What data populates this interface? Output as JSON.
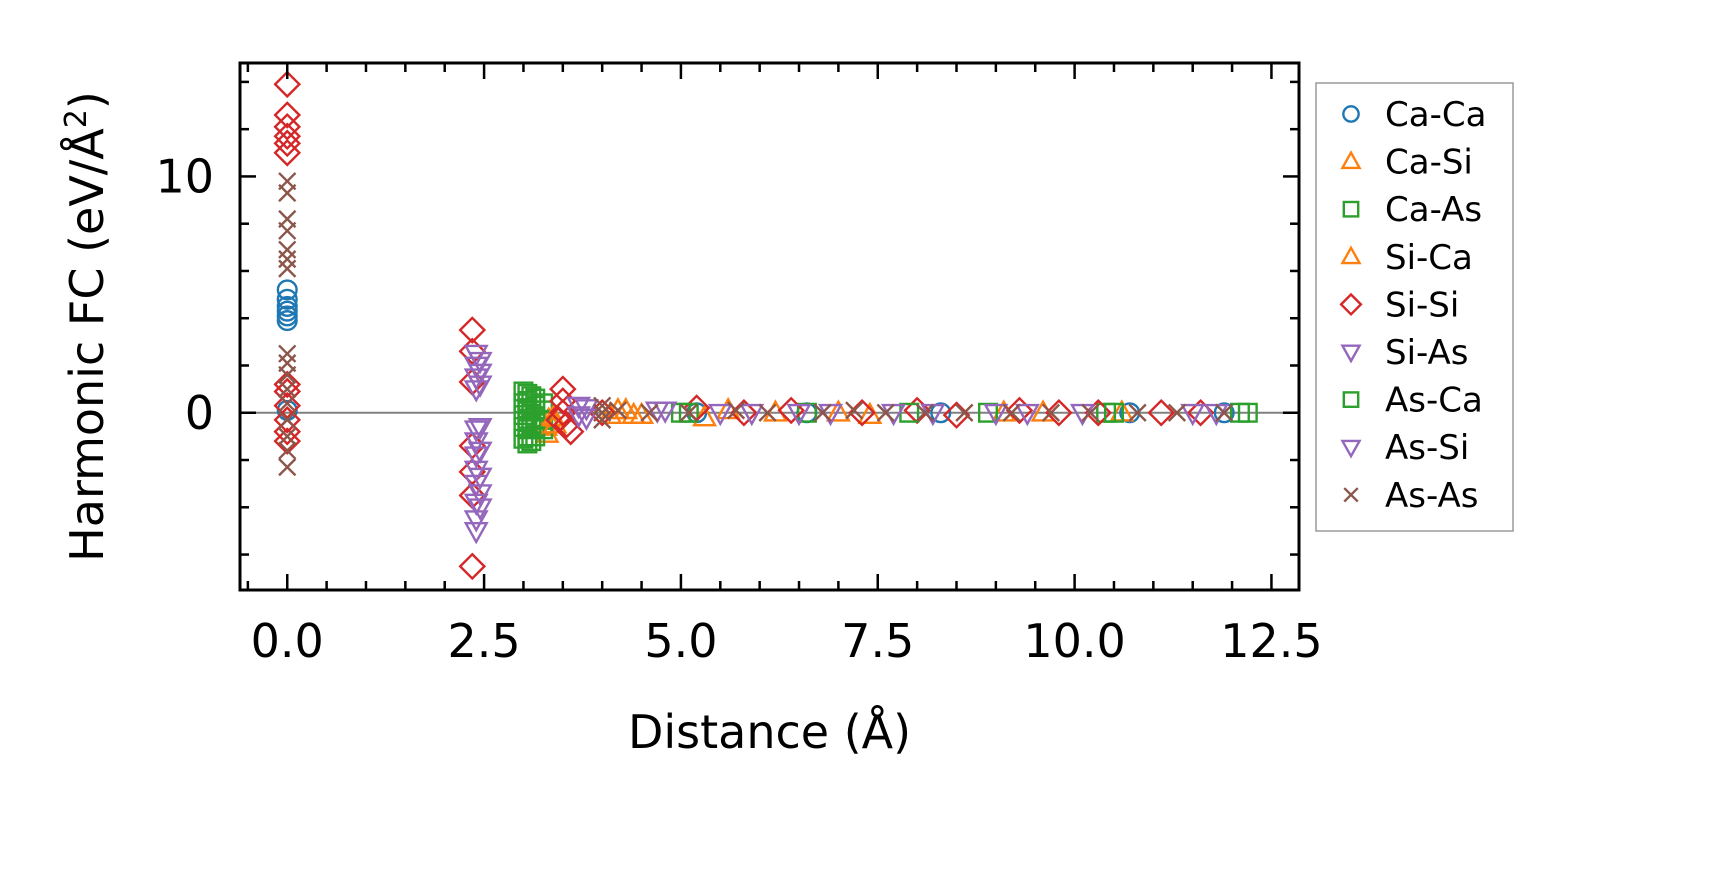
{
  "chart_data": {
    "type": "scatter",
    "title": "",
    "xlabel": "Distance (Å)",
    "ylabel_main": "Harmonic FC (eV/Å",
    "ylabel_sup": "2",
    "ylabel_close": ")",
    "xlim": [
      -0.6,
      12.85
    ],
    "ylim": [
      -7.5,
      14.8
    ],
    "xticks": [
      0.0,
      2.5,
      5.0,
      7.5,
      10.0,
      12.5
    ],
    "xtick_labels": [
      "0.0",
      "2.5",
      "5.0",
      "7.5",
      "10.0",
      "12.5"
    ],
    "yticks": [
      0,
      10
    ],
    "ytick_labels": [
      "0",
      "10"
    ],
    "zero_line": true,
    "grid": false,
    "legend_position": "right, outside",
    "series": [
      {
        "name": "Ca-Ca",
        "marker": "circle",
        "color": "#1f77b4",
        "points": [
          [
            0,
            5.2
          ],
          [
            0,
            4.8
          ],
          [
            0,
            4.5
          ],
          [
            0,
            4.3
          ],
          [
            0,
            4.1
          ],
          [
            0,
            3.9
          ],
          [
            0,
            0.1
          ],
          [
            5.2,
            0.0
          ],
          [
            6.6,
            0.0
          ],
          [
            8.3,
            0.0
          ],
          [
            10.7,
            0.0
          ],
          [
            11.9,
            0.0
          ]
        ]
      },
      {
        "name": "Ca-Si",
        "marker": "triangle-up",
        "color": "#ff7f0e",
        "points": [
          [
            3.3,
            -0.9
          ],
          [
            3.28,
            -0.6
          ],
          [
            3.32,
            -0.3
          ],
          [
            4.1,
            -0.1
          ],
          [
            4.3,
            0.1
          ],
          [
            4.5,
            -0.1
          ],
          [
            5.3,
            -0.2
          ],
          [
            6.2,
            0.0
          ],
          [
            7.4,
            -0.1
          ],
          [
            9.1,
            0.0
          ],
          [
            10.6,
            0.0
          ]
        ]
      },
      {
        "name": "Ca-As",
        "marker": "square",
        "color": "#2ca02c",
        "points": [
          [
            3.05,
            0.8
          ],
          [
            3.05,
            0.5
          ],
          [
            3.05,
            0.2
          ],
          [
            3.05,
            -0.1
          ],
          [
            3.05,
            -0.4
          ],
          [
            3.05,
            -0.7
          ],
          [
            3.05,
            -1.0
          ],
          [
            3.05,
            -1.3
          ],
          [
            3.15,
            0.6
          ],
          [
            3.15,
            0.3
          ],
          [
            3.15,
            -0.2
          ],
          [
            3.15,
            -0.6
          ],
          [
            3.15,
            -1.0
          ],
          [
            3.25,
            0.4
          ],
          [
            3.25,
            0.1
          ],
          [
            3.25,
            -0.3
          ],
          [
            3.25,
            -0.7
          ],
          [
            5.1,
            0.0
          ],
          [
            6.6,
            0.0
          ],
          [
            8.9,
            0.0
          ],
          [
            10.4,
            0.0
          ],
          [
            12.1,
            0.0
          ],
          [
            12.2,
            0.0
          ]
        ]
      },
      {
        "name": "Si-Ca",
        "marker": "triangle-up",
        "color": "#ff7f0e",
        "points": [
          [
            3.4,
            -0.5
          ],
          [
            3.38,
            -0.2
          ],
          [
            4.2,
            0.1
          ],
          [
            4.4,
            -0.1
          ],
          [
            5.6,
            0.1
          ],
          [
            7.0,
            0.0
          ],
          [
            9.6,
            0.0
          ]
        ]
      },
      {
        "name": "Si-Si",
        "marker": "diamond",
        "color": "#d62728",
        "points": [
          [
            0,
            13.9
          ],
          [
            0,
            12.6
          ],
          [
            0,
            12.1
          ],
          [
            0,
            11.7
          ],
          [
            0,
            11.4
          ],
          [
            0,
            11.0
          ],
          [
            0,
            1.2
          ],
          [
            0,
            0.9
          ],
          [
            0,
            0.3
          ],
          [
            0,
            -0.3
          ],
          [
            0,
            -0.8
          ],
          [
            0,
            -1.2
          ],
          [
            2.35,
            3.5
          ],
          [
            2.35,
            2.6
          ],
          [
            2.35,
            1.3
          ],
          [
            2.35,
            -1.4
          ],
          [
            2.35,
            -2.5
          ],
          [
            2.35,
            -3.5
          ],
          [
            2.35,
            -6.5
          ],
          [
            3.5,
            1.0
          ],
          [
            3.5,
            0.5
          ],
          [
            3.5,
            0.0
          ],
          [
            3.55,
            -0.5
          ],
          [
            3.6,
            -0.8
          ],
          [
            3.45,
            -0.3
          ],
          [
            4.0,
            0.0
          ],
          [
            5.2,
            0.2
          ],
          [
            5.8,
            0.0
          ],
          [
            6.4,
            0.1
          ],
          [
            7.3,
            0.0
          ],
          [
            8.0,
            0.1
          ],
          [
            8.5,
            -0.1
          ],
          [
            9.3,
            0.1
          ],
          [
            9.8,
            0.0
          ],
          [
            10.3,
            0.0
          ],
          [
            11.1,
            0.0
          ],
          [
            11.6,
            0.0
          ]
        ]
      },
      {
        "name": "Si-As",
        "marker": "triangle-down",
        "color": "#9467bd",
        "points": [
          [
            2.4,
            2.5
          ],
          [
            2.4,
            2.0
          ],
          [
            2.4,
            1.5
          ],
          [
            2.4,
            1.0
          ],
          [
            2.4,
            -0.7
          ],
          [
            2.4,
            -1.2
          ],
          [
            2.4,
            -1.8
          ],
          [
            2.4,
            -2.4
          ],
          [
            2.4,
            -3.0
          ],
          [
            2.4,
            -3.8
          ],
          [
            2.4,
            -4.5
          ],
          [
            2.4,
            -5.0
          ],
          [
            3.8,
            0.2
          ],
          [
            3.8,
            -0.2
          ],
          [
            4.7,
            0.1
          ],
          [
            5.9,
            0.0
          ],
          [
            6.9,
            0.0
          ],
          [
            8.2,
            0.0
          ],
          [
            9.4,
            0.0
          ],
          [
            11.5,
            0.0
          ]
        ]
      },
      {
        "name": "As-Ca",
        "marker": "square",
        "color": "#2ca02c",
        "points": [
          [
            3.0,
            0.9
          ],
          [
            3.0,
            0.4
          ],
          [
            3.0,
            -0.1
          ],
          [
            3.0,
            -0.6
          ],
          [
            3.0,
            -1.1
          ],
          [
            3.1,
            0.7
          ],
          [
            3.1,
            0.1
          ],
          [
            3.1,
            -0.5
          ],
          [
            3.1,
            -1.2
          ],
          [
            5.0,
            0.0
          ],
          [
            7.9,
            0.0
          ],
          [
            10.5,
            0.0
          ]
        ]
      },
      {
        "name": "As-Si",
        "marker": "triangle-down",
        "color": "#9467bd",
        "points": [
          [
            2.45,
            2.2
          ],
          [
            2.45,
            1.7
          ],
          [
            2.45,
            1.2
          ],
          [
            2.45,
            -0.6
          ],
          [
            2.45,
            -1.6
          ],
          [
            2.45,
            -2.7
          ],
          [
            2.45,
            -3.4
          ],
          [
            2.45,
            -4.0
          ],
          [
            3.7,
            0.3
          ],
          [
            3.7,
            -0.1
          ],
          [
            4.8,
            0.1
          ],
          [
            5.5,
            0.0
          ],
          [
            6.5,
            0.0
          ],
          [
            7.7,
            0.0
          ],
          [
            9.0,
            0.0
          ],
          [
            10.1,
            0.0
          ],
          [
            11.8,
            0.0
          ]
        ]
      },
      {
        "name": "As-As",
        "marker": "x",
        "color": "#8c564b",
        "points": [
          [
            0,
            9.8
          ],
          [
            0,
            9.3
          ],
          [
            0,
            8.2
          ],
          [
            0,
            7.7
          ],
          [
            0,
            6.9
          ],
          [
            0,
            6.5
          ],
          [
            0,
            6.1
          ],
          [
            0,
            2.5
          ],
          [
            0,
            2.1
          ],
          [
            0,
            1.6
          ],
          [
            0,
            1.0
          ],
          [
            0,
            0.4
          ],
          [
            0,
            -0.3
          ],
          [
            0,
            -1.0
          ],
          [
            0,
            -1.6
          ],
          [
            0,
            -2.3
          ],
          [
            4.0,
            0.3
          ],
          [
            4.0,
            0.0
          ],
          [
            4.0,
            -0.3
          ],
          [
            4.2,
            0.1
          ],
          [
            4.6,
            0.0
          ],
          [
            5.1,
            0.0
          ],
          [
            5.7,
            0.1
          ],
          [
            6.1,
            0.0
          ],
          [
            6.8,
            0.0
          ],
          [
            7.2,
            0.1
          ],
          [
            7.6,
            0.0
          ],
          [
            8.1,
            0.0
          ],
          [
            8.6,
            0.0
          ],
          [
            9.2,
            0.0
          ],
          [
            9.7,
            0.0
          ],
          [
            10.2,
            0.0
          ],
          [
            10.8,
            0.0
          ],
          [
            11.3,
            0.0
          ],
          [
            11.9,
            0.0
          ]
        ]
      }
    ]
  }
}
